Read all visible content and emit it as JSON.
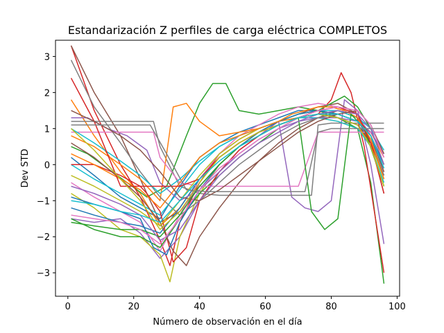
{
  "chart_data": {
    "type": "line",
    "title": "Estandarización Z perfiles de carga eléctrica COMPLETOS",
    "xlabel": "Número de observación en el día",
    "ylabel": "Dev STD",
    "xlim": [
      -3.75,
      100.75
    ],
    "ylim": [
      -3.65,
      3.45
    ],
    "xticks": [
      0,
      20,
      40,
      60,
      80,
      100
    ],
    "xtick_labels": [
      "0",
      "20",
      "40",
      "60",
      "80",
      "100"
    ],
    "yticks": [
      -3,
      -2,
      -1,
      0,
      1,
      2,
      3
    ],
    "ytick_labels": [
      "−3",
      "−2",
      "−1",
      "0",
      "1",
      "2",
      "3"
    ],
    "grid": false,
    "legend": "none",
    "n_observations": 96,
    "palette": [
      "#1f77b4",
      "#ff7f0e",
      "#2ca02c",
      "#d62728",
      "#9467bd",
      "#8c564b",
      "#e377c2",
      "#7f7f7f",
      "#bcbd22",
      "#17becf"
    ],
    "series": [
      {
        "color": "#1f77b4",
        "x": [
          1,
          8,
          16,
          22,
          28,
          34,
          40,
          46,
          52,
          58,
          64,
          70,
          76,
          82,
          88,
          92,
          96
        ],
        "y": [
          0.2,
          -0.3,
          -0.9,
          -1.2,
          -1.5,
          -0.6,
          0.2,
          0.6,
          0.9,
          1.1,
          1.3,
          1.5,
          1.5,
          1.4,
          1.2,
          0.9,
          0.3
        ]
      },
      {
        "color": "#ff7f0e",
        "x": [
          1,
          8,
          16,
          22,
          28,
          34,
          40,
          46,
          52,
          58,
          64,
          70,
          76,
          82,
          88,
          92,
          96
        ],
        "y": [
          1.8,
          0.8,
          -0.2,
          -0.8,
          -1.7,
          -1.2,
          -0.4,
          0.2,
          0.6,
          0.9,
          1.1,
          1.3,
          1.4,
          1.5,
          1.3,
          0.5,
          -0.6
        ]
      },
      {
        "color": "#2ca02c",
        "x": [
          1,
          6,
          12,
          18,
          24,
          30,
          36,
          40,
          44,
          48,
          52,
          58,
          64,
          70,
          76,
          82,
          88,
          92,
          96
        ],
        "y": [
          0.5,
          0.3,
          -0.1,
          -0.5,
          -0.9,
          -0.6,
          0.8,
          1.7,
          2.25,
          2.25,
          1.5,
          1.4,
          1.5,
          1.6,
          1.5,
          1.3,
          1.0,
          -0.5,
          -3.3
        ]
      },
      {
        "color": "#d62728",
        "x": [
          1,
          8,
          16,
          22,
          28,
          31,
          34,
          40,
          46,
          52,
          58,
          64,
          70,
          76,
          80,
          83,
          86,
          90,
          96
        ],
        "y": [
          3.3,
          1.5,
          0.0,
          -0.9,
          -2.1,
          -2.8,
          -1.6,
          -0.5,
          0.3,
          0.7,
          1.0,
          1.2,
          1.3,
          1.4,
          1.8,
          2.55,
          2.0,
          0.5,
          -3.0
        ]
      },
      {
        "color": "#9467bd",
        "x": [
          1,
          8,
          16,
          22,
          28,
          34,
          40,
          46,
          52,
          58,
          64,
          68,
          72,
          76,
          80,
          84,
          88,
          92,
          96
        ],
        "y": [
          -1.5,
          -1.6,
          -1.5,
          -1.9,
          -2.6,
          -2.0,
          -1.0,
          -0.2,
          0.4,
          0.8,
          1.2,
          -0.9,
          -1.2,
          -1.3,
          -1.0,
          1.8,
          1.5,
          0.0,
          -2.2
        ]
      },
      {
        "color": "#8c564b",
        "x": [
          1,
          8,
          16,
          22,
          28,
          34,
          40,
          46,
          52,
          58,
          64,
          70,
          76,
          82,
          88,
          92,
          96
        ],
        "y": [
          3.3,
          2.0,
          0.8,
          -0.4,
          -1.6,
          -1.3,
          -0.6,
          0.0,
          0.5,
          0.9,
          1.2,
          1.4,
          1.6,
          1.7,
          1.4,
          0.6,
          -0.8
        ]
      },
      {
        "color": "#e377c2",
        "x": [
          1,
          8,
          16,
          22,
          28,
          34,
          40,
          46,
          52,
          58,
          64,
          70,
          76,
          82,
          88,
          92,
          96
        ],
        "y": [
          -0.5,
          -0.9,
          -1.3,
          -1.6,
          -2.4,
          -1.4,
          -0.4,
          0.3,
          0.8,
          1.1,
          1.4,
          1.6,
          1.7,
          1.6,
          1.4,
          0.8,
          -0.2
        ]
      },
      {
        "color": "#7f7f7f",
        "x": [
          1,
          10,
          20,
          26,
          28,
          34,
          40,
          46,
          52,
          58,
          64,
          70,
          74,
          76,
          80,
          84,
          88,
          92,
          96
        ],
        "y": [
          1.2,
          1.2,
          1.2,
          1.2,
          0.5,
          -0.6,
          -0.8,
          -0.85,
          -0.85,
          -0.85,
          -0.85,
          -0.85,
          -0.85,
          1.1,
          1.15,
          1.15,
          1.15,
          1.15,
          1.15
        ]
      },
      {
        "color": "#bcbd22",
        "x": [
          1,
          8,
          16,
          22,
          28,
          31,
          34,
          40,
          46,
          52,
          58,
          64,
          70,
          76,
          82,
          88,
          92,
          96
        ],
        "y": [
          -0.8,
          -1.2,
          -1.8,
          -2.0,
          -2.5,
          -3.25,
          -2.0,
          -0.8,
          0.0,
          0.5,
          0.9,
          1.1,
          1.3,
          1.3,
          1.2,
          1.0,
          0.6,
          -0.4
        ]
      },
      {
        "color": "#17becf",
        "x": [
          1,
          8,
          16,
          22,
          28,
          34,
          40,
          46,
          52,
          58,
          64,
          70,
          76,
          82,
          88,
          92,
          96
        ],
        "y": [
          0.0,
          -0.4,
          -0.8,
          -1.1,
          -1.4,
          -0.7,
          0.0,
          0.5,
          0.8,
          1.0,
          1.2,
          1.3,
          1.3,
          1.2,
          1.0,
          0.5,
          -0.5
        ]
      },
      {
        "color": "#1f77b4",
        "x": [
          1,
          8,
          16,
          22,
          28,
          34,
          40,
          46,
          52,
          58,
          64,
          70,
          76,
          82,
          88,
          92,
          96
        ],
        "y": [
          -1.2,
          -1.4,
          -1.6,
          -1.7,
          -1.9,
          -1.2,
          -0.4,
          0.2,
          0.6,
          0.9,
          1.1,
          1.3,
          1.4,
          1.3,
          1.1,
          0.7,
          -0.1
        ]
      },
      {
        "color": "#ff7f0e",
        "x": [
          1,
          8,
          16,
          22,
          28,
          32,
          36,
          40,
          46,
          52,
          58,
          64,
          70,
          76,
          82,
          88,
          92,
          96
        ],
        "y": [
          0.8,
          0.5,
          0.0,
          -0.4,
          -1.0,
          1.6,
          1.7,
          1.2,
          0.8,
          0.9,
          1.0,
          1.2,
          1.3,
          1.5,
          1.4,
          1.2,
          0.9,
          0.2
        ]
      },
      {
        "color": "#2ca02c",
        "x": [
          1,
          8,
          16,
          22,
          28,
          34,
          40,
          46,
          52,
          58,
          64,
          70,
          76,
          80,
          84,
          88,
          92,
          96
        ],
        "y": [
          -1.5,
          -1.8,
          -2.0,
          -2.0,
          -2.3,
          -1.5,
          -0.8,
          -0.3,
          0.2,
          0.6,
          1.0,
          1.3,
          1.5,
          1.7,
          1.9,
          1.6,
          1.0,
          0.0
        ]
      },
      {
        "color": "#d62728",
        "x": [
          1,
          8,
          16,
          22,
          24,
          28,
          32,
          36,
          40,
          46,
          52,
          58,
          64,
          70,
          76,
          82,
          88,
          92,
          96
        ],
        "y": [
          0.0,
          0.0,
          -0.3,
          -0.6,
          -0.8,
          -1.3,
          -2.7,
          -2.3,
          -1.0,
          -0.2,
          0.4,
          0.8,
          1.1,
          1.3,
          1.4,
          1.3,
          1.1,
          0.6,
          -0.3
        ]
      },
      {
        "color": "#9467bd",
        "x": [
          1,
          6,
          12,
          18,
          24,
          28,
          34,
          40,
          46,
          52,
          58,
          64,
          70,
          76,
          82,
          88,
          92,
          96
        ],
        "y": [
          1.3,
          1.3,
          1.0,
          0.8,
          0.4,
          -0.5,
          -1.0,
          -0.7,
          -0.2,
          0.3,
          0.7,
          1.0,
          1.2,
          1.3,
          1.3,
          1.2,
          0.9,
          0.3
        ]
      },
      {
        "color": "#8c564b",
        "x": [
          1,
          8,
          16,
          22,
          28,
          32,
          36,
          40,
          46,
          52,
          58,
          64,
          70,
          76,
          82,
          88,
          92,
          96
        ],
        "y": [
          0.6,
          0.2,
          -0.4,
          -0.9,
          -1.6,
          -2.4,
          -2.8,
          -2.0,
          -1.2,
          -0.5,
          0.1,
          0.6,
          1.0,
          1.3,
          1.5,
          1.3,
          0.8,
          -0.2
        ]
      },
      {
        "color": "#e377c2",
        "x": [
          1,
          10,
          20,
          26,
          28,
          34,
          40,
          46,
          52,
          58,
          64,
          70,
          76,
          82,
          88,
          92,
          96
        ],
        "y": [
          0.9,
          0.9,
          0.9,
          0.9,
          0.2,
          -0.5,
          -0.6,
          -0.6,
          -0.6,
          -0.6,
          -0.6,
          -0.6,
          0.9,
          0.9,
          0.9,
          0.9,
          0.9
        ]
      },
      {
        "color": "#7f7f7f",
        "x": [
          1,
          8,
          16,
          22,
          28,
          34,
          40,
          46,
          52,
          58,
          64,
          70,
          76,
          82,
          88,
          92,
          96
        ],
        "y": [
          2.9,
          1.6,
          0.6,
          -0.2,
          -0.9,
          -1.4,
          -1.0,
          -0.5,
          0.0,
          0.4,
          0.8,
          1.1,
          1.3,
          1.4,
          1.2,
          0.7,
          -0.3
        ]
      },
      {
        "color": "#bcbd22",
        "x": [
          1,
          8,
          16,
          22,
          28,
          34,
          40,
          46,
          52,
          58,
          64,
          70,
          76,
          82,
          88,
          92,
          96
        ],
        "y": [
          -0.3,
          -0.6,
          -1.0,
          -1.3,
          -1.7,
          -1.0,
          -0.3,
          0.3,
          0.7,
          1.0,
          1.2,
          1.4,
          1.5,
          1.4,
          1.2,
          0.8,
          0.0
        ]
      },
      {
        "color": "#17becf",
        "x": [
          1,
          8,
          16,
          22,
          28,
          34,
          40,
          46,
          52,
          58,
          64,
          70,
          76,
          82,
          88,
          92,
          96
        ],
        "y": [
          1.0,
          0.6,
          0.1,
          -0.3,
          -0.8,
          -0.4,
          0.1,
          0.5,
          0.8,
          1.0,
          1.2,
          1.4,
          1.5,
          1.5,
          1.3,
          1.0,
          0.4
        ]
      },
      {
        "color": "#1f77b4",
        "x": [
          1,
          8,
          16,
          22,
          26,
          30,
          34,
          40,
          46,
          52,
          58,
          64,
          70,
          76,
          82,
          88,
          92,
          96
        ],
        "y": [
          -0.9,
          -1.1,
          -1.3,
          -1.5,
          -2.3,
          -2.5,
          -1.6,
          -0.7,
          0.0,
          0.5,
          0.9,
          1.2,
          1.4,
          1.5,
          1.4,
          1.2,
          0.8,
          0.0
        ]
      },
      {
        "color": "#ff7f0e",
        "x": [
          1,
          8,
          16,
          22,
          28,
          34,
          40,
          46,
          52,
          58,
          64,
          68,
          72,
          76,
          80,
          84,
          88,
          92,
          96
        ],
        "y": [
          0.3,
          0.0,
          -0.4,
          -0.7,
          -1.2,
          -0.5,
          0.2,
          0.6,
          0.8,
          1.0,
          1.2,
          1.4,
          1.5,
          1.6,
          1.6,
          1.5,
          1.3,
          0.7,
          -0.4
        ]
      },
      {
        "color": "#2ca02c",
        "x": [
          1,
          8,
          16,
          22,
          28,
          34,
          40,
          46,
          52,
          58,
          64,
          70,
          74,
          78,
          82,
          86,
          90,
          96
        ],
        "y": [
          -1.6,
          -1.7,
          -1.8,
          -1.8,
          -2.0,
          -1.4,
          -0.6,
          0.0,
          0.5,
          0.8,
          1.1,
          1.3,
          -1.3,
          -1.8,
          -1.5,
          1.4,
          1.0,
          -0.6
        ]
      },
      {
        "color": "#d62728",
        "x": [
          1,
          8,
          16,
          20,
          24,
          28,
          34,
          40,
          46,
          52,
          58,
          64,
          70,
          76,
          82,
          88,
          92,
          96
        ],
        "y": [
          2.4,
          1.2,
          -0.6,
          -0.6,
          -0.6,
          -0.6,
          -0.6,
          -0.4,
          0.2,
          0.6,
          0.9,
          1.1,
          1.3,
          1.5,
          1.6,
          1.4,
          0.6,
          -0.8
        ]
      },
      {
        "color": "#9467bd",
        "x": [
          1,
          8,
          16,
          22,
          28,
          34,
          40,
          46,
          52,
          58,
          64,
          70,
          76,
          82,
          88,
          92,
          96
        ],
        "y": [
          -0.6,
          -0.8,
          -1.1,
          -1.4,
          -2.1,
          -1.8,
          -1.0,
          -0.3,
          0.2,
          0.6,
          0.9,
          1.2,
          1.4,
          1.5,
          1.4,
          1.0,
          0.0
        ]
      },
      {
        "color": "#8c564b",
        "x": [
          1,
          8,
          16,
          22,
          28,
          34,
          40,
          46,
          52,
          58,
          64,
          70,
          76,
          82,
          88,
          92,
          96
        ],
        "y": [
          1.5,
          1.2,
          0.8,
          0.4,
          -0.2,
          -0.9,
          -1.0,
          -0.7,
          -0.3,
          0.1,
          0.5,
          0.9,
          1.2,
          1.4,
          1.5,
          1.1,
          0.3
        ]
      },
      {
        "color": "#e377c2",
        "x": [
          1,
          8,
          16,
          22,
          28,
          34,
          40,
          46,
          52,
          58,
          64,
          70,
          76,
          82,
          88,
          92,
          96
        ],
        "y": [
          -1.4,
          -1.5,
          -1.6,
          -1.8,
          -2.2,
          -1.5,
          -0.7,
          -0.1,
          0.3,
          0.7,
          1.0,
          1.3,
          1.5,
          1.6,
          1.5,
          1.1,
          0.2
        ]
      },
      {
        "color": "#7f7f7f",
        "x": [
          1,
          10,
          20,
          25,
          30,
          36,
          42,
          48,
          54,
          60,
          66,
          72,
          76,
          80,
          86,
          92,
          96
        ],
        "y": [
          1.1,
          1.1,
          1.1,
          1.1,
          0.3,
          -0.7,
          -0.75,
          -0.75,
          -0.75,
          -0.75,
          -0.75,
          -0.75,
          0.9,
          1.0,
          1.0,
          1.0,
          1.0
        ]
      },
      {
        "color": "#bcbd22",
        "x": [
          1,
          8,
          16,
          22,
          28,
          34,
          40,
          46,
          52,
          58,
          64,
          70,
          76,
          82,
          88,
          92,
          96
        ],
        "y": [
          1.0,
          0.4,
          -0.4,
          -1.0,
          -1.8,
          -1.3,
          -0.5,
          0.2,
          0.6,
          0.9,
          1.1,
          1.3,
          1.4,
          1.3,
          1.1,
          0.5,
          -0.6
        ]
      },
      {
        "color": "#17becf",
        "x": [
          1,
          8,
          16,
          22,
          28,
          34,
          40,
          46,
          52,
          58,
          64,
          70,
          76,
          82,
          88,
          92,
          96
        ],
        "y": [
          -1.0,
          -1.1,
          -1.3,
          -1.4,
          -1.6,
          -1.0,
          -0.4,
          0.1,
          0.5,
          0.8,
          1.1,
          1.3,
          1.4,
          1.4,
          1.2,
          0.8,
          -0.1
        ]
      }
    ]
  }
}
